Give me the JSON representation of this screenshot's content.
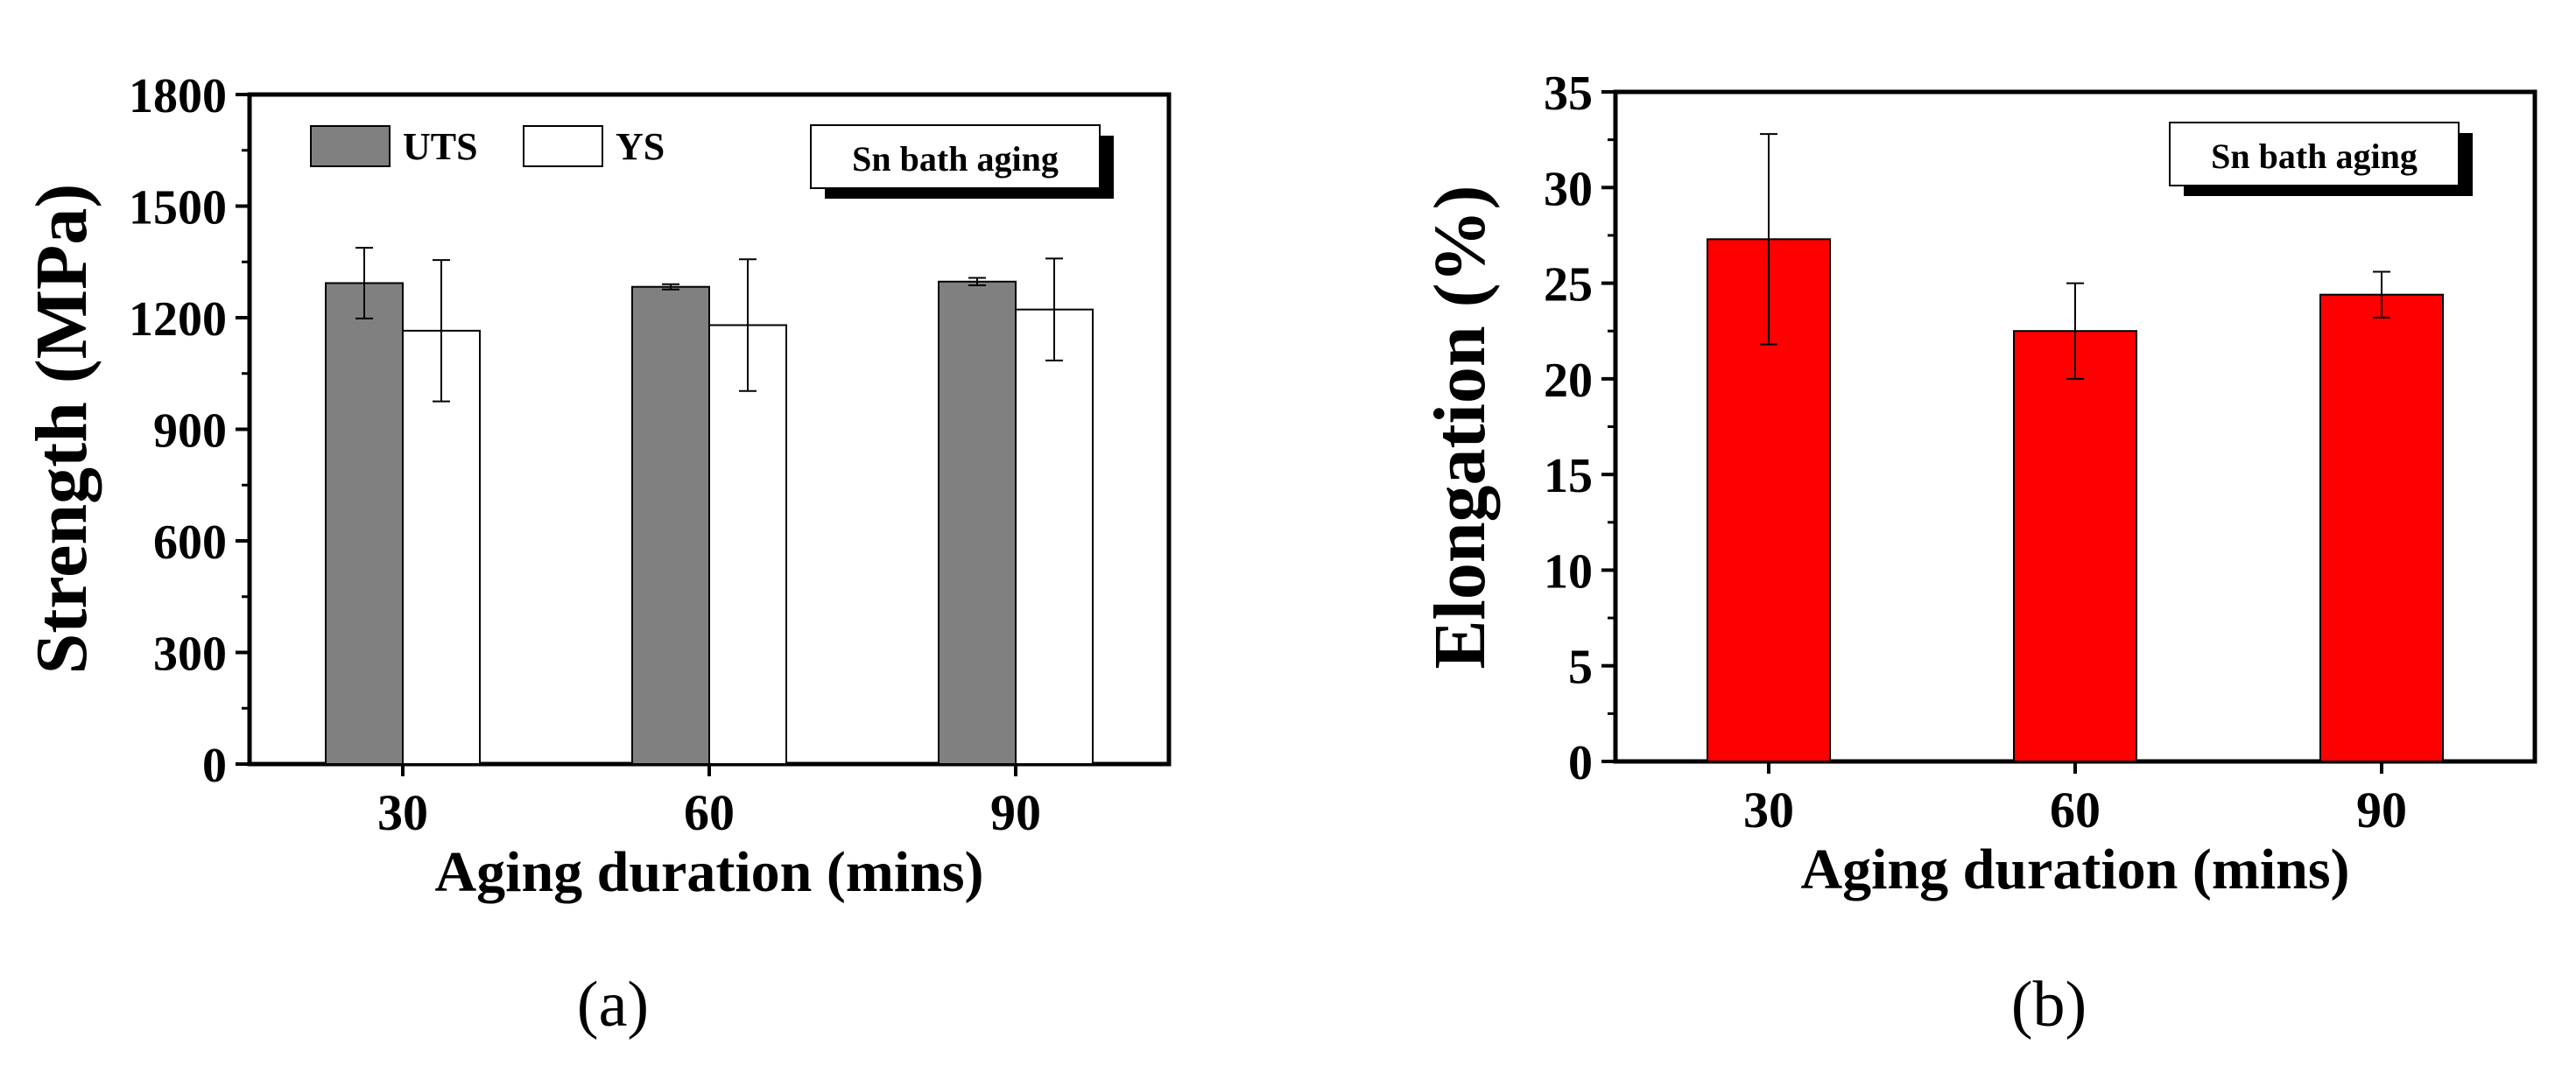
{
  "chart_data": [
    {
      "type": "bar",
      "panel_label": "(a)",
      "categories": [
        "30",
        "60",
        "90"
      ],
      "series": [
        {
          "name": "UTS",
          "values": [
            1293,
            1283,
            1297
          ],
          "errors": [
            95,
            7,
            10
          ],
          "color": "#808080"
        },
        {
          "name": "YS",
          "values": [
            1165,
            1180,
            1222
          ],
          "errors": [
            190,
            177,
            137
          ],
          "color": "#ffffff"
        }
      ],
      "xlabel": "Aging duration (mins)",
      "ylabel": "Strength (MPa)",
      "ylim": [
        0,
        1800
      ],
      "yticks": [
        "0",
        "300",
        "600",
        "900",
        "1200",
        "1500",
        "1800"
      ],
      "annotation": "Sn bath aging",
      "legend_placement": "top-left",
      "grid": false
    },
    {
      "type": "bar",
      "panel_label": "(b)",
      "categories": [
        "30",
        "60",
        "90"
      ],
      "series": [
        {
          "values": [
            27.3,
            22.5,
            24.4
          ],
          "errors": [
            5.5,
            2.5,
            1.2
          ],
          "color": "#ff0000"
        }
      ],
      "xlabel": "Aging duration (mins)",
      "ylabel": "Elongation (%)",
      "ylim": [
        0,
        35
      ],
      "yticks": [
        "0",
        "5",
        "10",
        "15",
        "20",
        "25",
        "30",
        "35"
      ],
      "annotation": "Sn bath aging",
      "grid": false
    }
  ]
}
